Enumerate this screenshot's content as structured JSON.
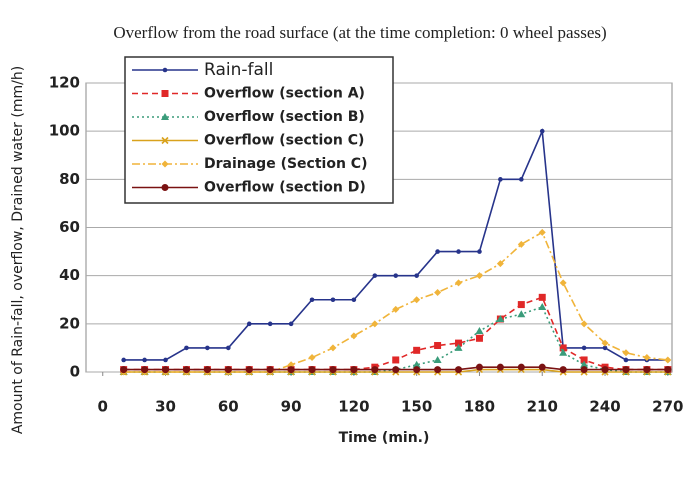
{
  "chart_data": {
    "type": "line",
    "title": "Overflow from the road surface (at the time completion: 0 wheel passes)",
    "xlabel": "Time (min.)",
    "ylabel": "Amount of Rain-fall, overflow, Drained water (mm/h)",
    "x": [
      10,
      20,
      30,
      40,
      50,
      60,
      70,
      80,
      90,
      100,
      110,
      120,
      130,
      140,
      150,
      160,
      170,
      180,
      190,
      200,
      210,
      220,
      230,
      240,
      250,
      260,
      270
    ],
    "series": [
      {
        "name": "Rain-fall",
        "color": "#27348b",
        "marker": "circle",
        "dash": "none",
        "values": [
          5,
          5,
          5,
          10,
          10,
          10,
          20,
          20,
          20,
          30,
          30,
          30,
          40,
          40,
          40,
          50,
          50,
          50,
          80,
          80,
          100,
          10,
          10,
          10,
          5,
          5,
          5
        ]
      },
      {
        "name": "Overflow (section A)",
        "color": "#e02828",
        "marker": "square",
        "dash": "6,4",
        "values": [
          1,
          1,
          1,
          1,
          1,
          1,
          1,
          1,
          1,
          1,
          1,
          1,
          2,
          5,
          9,
          11,
          12,
          14,
          22,
          28,
          31,
          10,
          5,
          2,
          1,
          1,
          1
        ]
      },
      {
        "name": "Overflow (section B)",
        "color": "#3a9c7a",
        "marker": "triangle",
        "dash": "2,3",
        "values": [
          0,
          0,
          0,
          0,
          0,
          0,
          0,
          0,
          0,
          0,
          0,
          0,
          0,
          1,
          3,
          5,
          10,
          17,
          22,
          24,
          27,
          8,
          3,
          1,
          0,
          0,
          0
        ]
      },
      {
        "name": "Overflow (section C)",
        "color": "#d9a21c",
        "marker": "cross",
        "dash": "none",
        "values": [
          0,
          0,
          0,
          0,
          0,
          0,
          0,
          0,
          0,
          0,
          0,
          0,
          0,
          0,
          0,
          0,
          0,
          1,
          1,
          1,
          1,
          0,
          0,
          0,
          0,
          0,
          0
        ]
      },
      {
        "name": "Drainage (Section C)",
        "color": "#f0b43a",
        "marker": "diamond",
        "dash": "8,3,2,3",
        "values": [
          0,
          0,
          0,
          0,
          0,
          0,
          0,
          0,
          3,
          6,
          10,
          15,
          20,
          26,
          30,
          33,
          37,
          40,
          45,
          53,
          58,
          37,
          20,
          12,
          8,
          6,
          5
        ]
      },
      {
        "name": "Overflow (section D)",
        "color": "#7a1212",
        "marker": "circle",
        "dash": "none",
        "values": [
          1,
          1,
          1,
          1,
          1,
          1,
          1,
          1,
          1,
          1,
          1,
          1,
          1,
          1,
          1,
          1,
          1,
          2,
          2,
          2,
          2,
          1,
          1,
          1,
          1,
          1,
          1
        ]
      }
    ],
    "xlim": [
      -8,
      272
    ],
    "xticks": [
      0,
      30,
      60,
      90,
      120,
      150,
      180,
      210,
      240,
      270
    ],
    "ylim": [
      0,
      120
    ],
    "yticks": [
      0,
      20,
      40,
      60,
      80,
      100,
      120
    ],
    "grid": true,
    "legend": "upper left"
  }
}
